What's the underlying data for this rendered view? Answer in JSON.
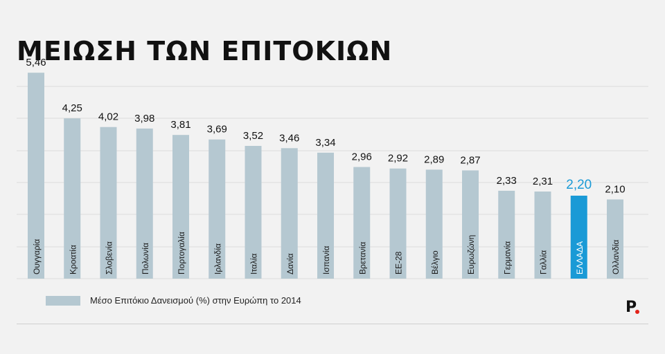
{
  "header": {
    "title": "ΜΕΙΩΣΗ ΤΩΝ ΕΠΙΤΟΚΙΩΝ"
  },
  "legend": {
    "label": "Μέσο Επιτόκιο Δανεισμού (%) στην Ευρώπη το 2014"
  },
  "brand": {
    "logo_text": "P"
  },
  "colors": {
    "bar": "#b5c8d1",
    "highlight": "#1a9ad6",
    "grid": "#dcdcdc",
    "text": "#111111",
    "accent_dot": "#e2231a"
  },
  "chart_data": {
    "type": "bar",
    "title": "ΜΕΙΩΣΗ ΤΩΝ ΕΠΙΤΟΚΙΩΝ",
    "xlabel": "",
    "ylabel": "",
    "ylim": [
      0,
      5.5
    ],
    "grid": true,
    "legend_position": "bottom-left",
    "series_name": "Μέσο Επιτόκιο Δανεισμού (%) στην Ευρώπη το 2014",
    "categories": [
      "Ουγγαρία",
      "Κροατία",
      "Σλοβενία",
      "Πολωνία",
      "Πορτογαλία",
      "Ιρλανδία",
      "Ιταλία",
      "Δανία",
      "Ισπανία",
      "Βρετανία",
      "ΕΕ-28",
      "Βέλγιο",
      "Ευρωζώνη",
      "Γερμανία",
      "Γαλλία",
      "ΕΛΛΑΔΑ",
      "Ολλανδία"
    ],
    "values": [
      5.46,
      4.25,
      4.02,
      3.98,
      3.81,
      3.69,
      3.52,
      3.46,
      3.34,
      2.96,
      2.92,
      2.89,
      2.87,
      2.33,
      2.31,
      2.2,
      2.1
    ],
    "value_labels": [
      "5,46",
      "4,25",
      "4,02",
      "3,98",
      "3,81",
      "3,69",
      "3,52",
      "3,46",
      "3,34",
      "2,96",
      "2,92",
      "2,89",
      "2,87",
      "2,33",
      "2,31",
      "2,20",
      "2,10"
    ],
    "highlight_category": "ΕΛΛΑΔΑ"
  }
}
